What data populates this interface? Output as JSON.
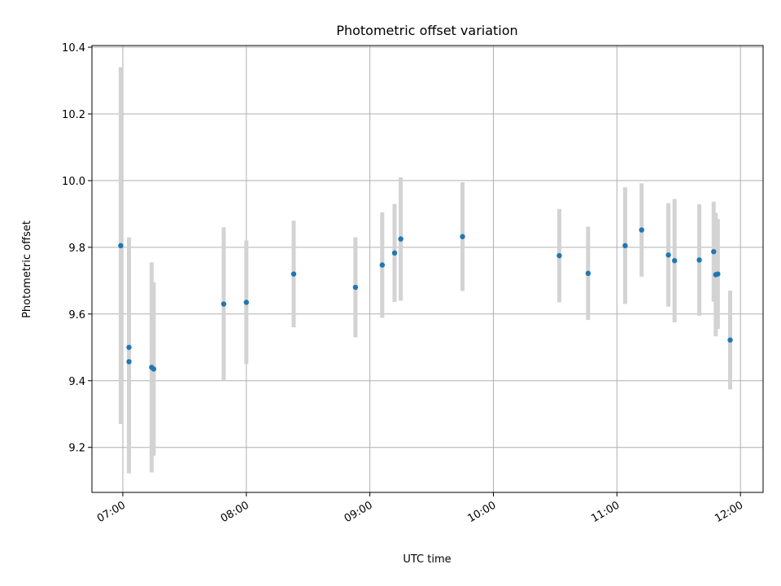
{
  "chart_data": {
    "type": "scatter",
    "title": "Photometric offset variation",
    "xlabel": "UTC time",
    "ylabel": "Photometric offset",
    "x_tick_labels": [
      "07:00",
      "08:00",
      "09:00",
      "10:00",
      "11:00",
      "12:00"
    ],
    "y_tick_labels": [
      "9.2",
      "9.4",
      "9.6",
      "9.8",
      "10.0",
      "10.2",
      "10.4"
    ],
    "y_ticks": [
      9.2,
      9.4,
      9.6,
      9.8,
      10.0,
      10.2,
      10.4
    ],
    "x_ticks": [
      "07:00",
      "08:00",
      "09:00",
      "10:00",
      "11:00",
      "12:00"
    ],
    "xlim": [
      "06:45",
      "12:11"
    ],
    "ylim": [
      9.065,
      10.405
    ],
    "grid": true,
    "point_color": "#1f77b4",
    "errorbar_color": "#d3d3d3",
    "points": [
      {
        "x": "06:59",
        "y": 9.805,
        "err": 0.535
      },
      {
        "x": "07:03",
        "y": 9.457,
        "err": 0.335
      },
      {
        "x": "07:03",
        "y": 9.5,
        "err": 0.33
      },
      {
        "x": "07:14",
        "y": 9.44,
        "err": 0.315
      },
      {
        "x": "07:15",
        "y": 9.435,
        "err": 0.26
      },
      {
        "x": "07:49",
        "y": 9.63,
        "err": 0.23
      },
      {
        "x": "08:00",
        "y": 9.635,
        "err": 0.185
      },
      {
        "x": "08:23",
        "y": 9.72,
        "err": 0.16
      },
      {
        "x": "08:53",
        "y": 9.68,
        "err": 0.15
      },
      {
        "x": "09:06",
        "y": 9.747,
        "err": 0.158
      },
      {
        "x": "09:12",
        "y": 9.783,
        "err": 0.147
      },
      {
        "x": "09:15",
        "y": 9.825,
        "err": 0.185
      },
      {
        "x": "09:45",
        "y": 9.832,
        "err": 0.163
      },
      {
        "x": "10:32",
        "y": 9.775,
        "err": 0.14
      },
      {
        "x": "10:46",
        "y": 9.722,
        "err": 0.14
      },
      {
        "x": "11:04",
        "y": 9.805,
        "err": 0.175
      },
      {
        "x": "11:12",
        "y": 9.852,
        "err": 0.14
      },
      {
        "x": "11:25",
        "y": 9.777,
        "err": 0.155
      },
      {
        "x": "11:28",
        "y": 9.76,
        "err": 0.185
      },
      {
        "x": "11:40",
        "y": 9.762,
        "err": 0.167
      },
      {
        "x": "11:47",
        "y": 9.787,
        "err": 0.15
      },
      {
        "x": "11:48",
        "y": 9.718,
        "err": 0.185
      },
      {
        "x": "11:49",
        "y": 9.72,
        "err": 0.165
      },
      {
        "x": "11:55",
        "y": 9.522,
        "err": 0.148
      }
    ]
  }
}
